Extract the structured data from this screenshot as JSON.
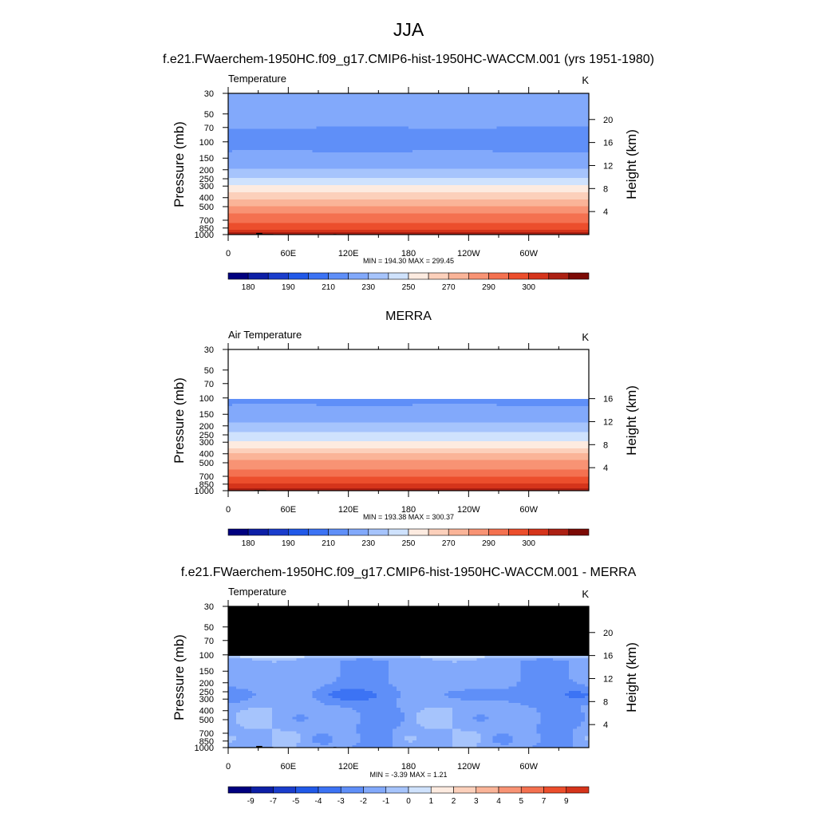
{
  "figure_title": "JJA",
  "colors": {
    "temperature_bands": [
      "#00007f",
      "#0d1fa6",
      "#1a3dcc",
      "#2159e8",
      "#3c73f4",
      "#5f8ff8",
      "#82a9fb",
      "#a6c4fc",
      "#cfe2fd",
      "#fdebe0",
      "#fcd0bb",
      "#fab498",
      "#f89374",
      "#f47150",
      "#ec4e2c",
      "#d5341b",
      "#ac2013",
      "#7c0a05"
    ],
    "difference_bands": [
      "#00007f",
      "#0d1fa6",
      "#1a3dcc",
      "#2159e8",
      "#3c73f4",
      "#5f8ff8",
      "#82a9fb",
      "#a6c4fc",
      "#cfe2fd",
      "#fdebe0",
      "#fcd0bb",
      "#fab498",
      "#f89374",
      "#f47150",
      "#ec4e2c",
      "#d5341b",
      "#ac2013",
      "#7c0a05"
    ],
    "masked": "#000000"
  },
  "chart_data": [
    {
      "type": "heatmap",
      "panel_title": "f.e21.FWaerchem-1950HC.f09_g17.CMIP6-hist-1950HC-WACCM.001 (yrs 1951-1980)",
      "left_string": "Temperature",
      "right_string": "K",
      "ylabel": "Pressure (mb)",
      "y2label": "Height (km)",
      "x_ticks": [
        "0",
        "60E",
        "120E",
        "180",
        "120W",
        "60W"
      ],
      "x_range": [
        0,
        360
      ],
      "y_ticks": [
        "30",
        "50",
        "70",
        "100",
        "150",
        "200",
        "250",
        "300",
        "400",
        "500",
        "700",
        "850",
        "1000"
      ],
      "y_values": [
        30,
        50,
        70,
        100,
        150,
        200,
        250,
        300,
        400,
        500,
        700,
        850,
        1000
      ],
      "y_range": [
        30,
        1000
      ],
      "y2_ticks": [
        "4",
        "8",
        "12",
        "16",
        "20"
      ],
      "y2_values": [
        4,
        8,
        12,
        16,
        20
      ],
      "min_max": "MIN = 194.30  MAX = 299.45",
      "colorbar_labels": [
        "180",
        "190",
        "210",
        "230",
        "250",
        "270",
        "290",
        "300"
      ],
      "field": "model",
      "profile": [
        [
          30,
          209
        ],
        [
          50,
          205
        ],
        [
          70,
          200
        ],
        [
          100,
          196
        ],
        [
          150,
          203
        ],
        [
          200,
          211
        ],
        [
          250,
          221
        ],
        [
          300,
          231
        ],
        [
          400,
          248
        ],
        [
          500,
          261
        ],
        [
          700,
          277
        ],
        [
          850,
          288
        ],
        [
          1000,
          297
        ]
      ]
    },
    {
      "type": "heatmap",
      "panel_title": "MERRA",
      "left_string": "Air Temperature",
      "right_string": "K",
      "ylabel": "Pressure (mb)",
      "y2label": "Height (km)",
      "x_ticks": [
        "0",
        "60E",
        "120E",
        "180",
        "120W",
        "60W"
      ],
      "x_range": [
        0,
        360
      ],
      "y_ticks": [
        "30",
        "50",
        "70",
        "100",
        "150",
        "200",
        "250",
        "300",
        "400",
        "500",
        "700",
        "850",
        "1000"
      ],
      "y_values": [
        30,
        50,
        70,
        100,
        150,
        200,
        250,
        300,
        400,
        500,
        700,
        850,
        1000
      ],
      "y_range": [
        30,
        1000
      ],
      "y2_ticks": [
        "4",
        "8",
        "12",
        "16"
      ],
      "y2_values": [
        4,
        8,
        12,
        16
      ],
      "min_max": "MIN = 193.38  MAX = 300.37",
      "colorbar_labels": [
        "180",
        "190",
        "210",
        "230",
        "250",
        "270",
        "290",
        "300"
      ],
      "field": "obs",
      "data_top_pressure": 100,
      "profile": [
        [
          100,
          196
        ],
        [
          150,
          204
        ],
        [
          200,
          212
        ],
        [
          250,
          222
        ],
        [
          300,
          232
        ],
        [
          400,
          249
        ],
        [
          500,
          262
        ],
        [
          700,
          278
        ],
        [
          850,
          289
        ],
        [
          1000,
          298
        ]
      ]
    },
    {
      "type": "heatmap",
      "panel_title": "f.e21.FWaerchem-1950HC.f09_g17.CMIP6-hist-1950HC-WACCM.001 - MERRA",
      "left_string": "Temperature",
      "right_string": "K",
      "ylabel": "Pressure (mb)",
      "y2label": "Height (km)",
      "x_ticks": [
        "0",
        "60E",
        "120E",
        "180",
        "120W",
        "60W"
      ],
      "x_range": [
        0,
        360
      ],
      "y_ticks": [
        "30",
        "50",
        "70",
        "100",
        "150",
        "200",
        "250",
        "300",
        "400",
        "500",
        "700",
        "850",
        "1000"
      ],
      "y_values": [
        30,
        50,
        70,
        100,
        150,
        200,
        250,
        300,
        400,
        500,
        700,
        850,
        1000
      ],
      "y_range": [
        30,
        1000
      ],
      "y2_ticks": [
        "4",
        "8",
        "12",
        "16",
        "20"
      ],
      "y2_values": [
        4,
        8,
        12,
        16,
        20
      ],
      "min_max": "MIN =  -3.39  MAX =   1.21",
      "colorbar_labels": [
        "-9",
        "-7",
        "-5",
        "-4",
        "-3",
        "-2",
        "-1",
        "0",
        "1",
        "2",
        "3",
        "4",
        "5",
        "7",
        "9"
      ],
      "field": "diff",
      "masked_above_pressure": 100
    }
  ]
}
